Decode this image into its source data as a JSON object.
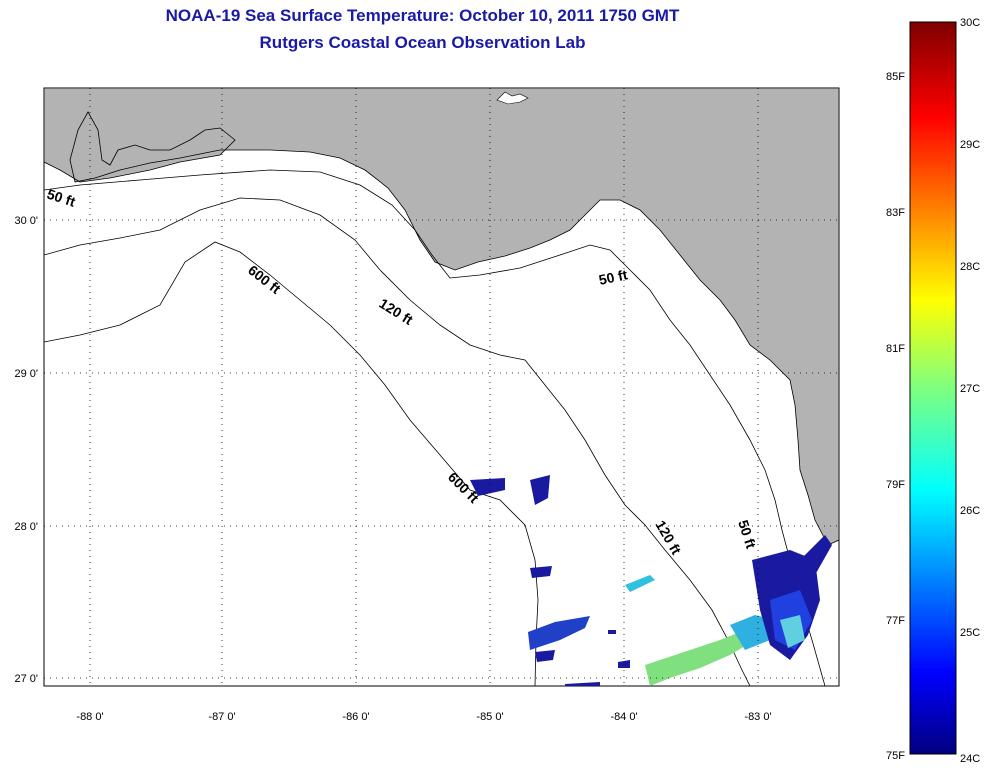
{
  "title": {
    "line1": "NOAA-19 Sea Surface Temperature:  October 10, 2011 1750 GMT",
    "line2": "Rutgers Coastal Ocean Observation Lab"
  },
  "axes": {
    "lon_labels": [
      "-88 0'",
      "-87 0'",
      "-86 0'",
      "-85 0'",
      "-84 0'",
      "-83 0'"
    ],
    "lat_labels": [
      "30 0'",
      "29 0'",
      "28 0'",
      "27 0'"
    ]
  },
  "contours": {
    "c50a": "50 ft",
    "c600a": "600 ft",
    "c120a": "120 ft",
    "c50b": "50 ft",
    "c600b": "600 ft",
    "c120b": "120 ft",
    "c50c": "50 ft"
  },
  "colorbar": {
    "f_labels": [
      "85F",
      "83F",
      "81F",
      "79F",
      "77F",
      "75F"
    ],
    "c_labels": [
      "30C",
      "29C",
      "28C",
      "27C",
      "26C",
      "25C",
      "24C"
    ]
  },
  "colors": {
    "land": "#b3b3b3",
    "title": "#1a1aa6"
  }
}
